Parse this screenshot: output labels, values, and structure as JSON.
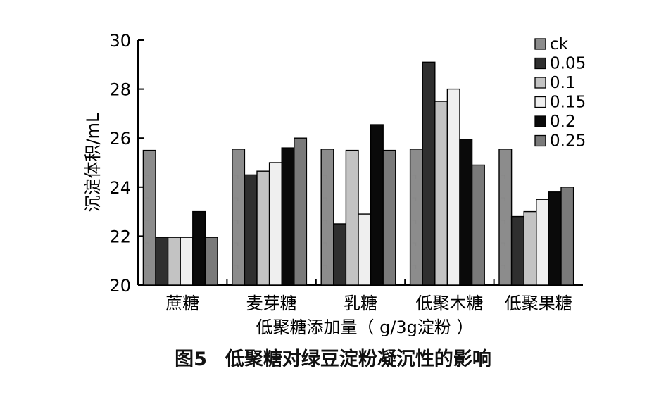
{
  "chart_data": {
    "type": "bar",
    "ylabel": "沉淀体积/mL",
    "xlabel": "低聚糖添加量（ g/3g淀粉 ）",
    "ylim": [
      20,
      30
    ],
    "yticks": [
      "20",
      "22",
      "24",
      "26",
      "28",
      "30"
    ],
    "categories": [
      "蔗糖",
      "麦芽糖",
      "乳糖",
      "低聚木糖",
      "低聚果糖"
    ],
    "legend_position": "top-right",
    "grid": false,
    "series": [
      {
        "name": "ck",
        "color": "#8c8c8c",
        "values": [
          25.5,
          25.55,
          25.55,
          25.55,
          25.55
        ]
      },
      {
        "name": "0.05",
        "color": "#2f2f2f",
        "values": [
          21.95,
          24.5,
          22.5,
          29.1,
          22.8
        ]
      },
      {
        "name": "0.1",
        "color": "#c3c3c3",
        "values": [
          21.95,
          24.65,
          25.5,
          27.5,
          23.0
        ]
      },
      {
        "name": "0.15",
        "color": "#efefef",
        "values": [
          21.95,
          25.0,
          22.9,
          28.0,
          23.5
        ]
      },
      {
        "name": "0.2",
        "color": "#0a0a0a",
        "values": [
          23.0,
          25.6,
          26.55,
          25.95,
          23.8
        ]
      },
      {
        "name": "0.25",
        "color": "#7a7a7a",
        "values": [
          21.95,
          26.0,
          25.5,
          24.9,
          24.0
        ]
      }
    ]
  },
  "caption": {
    "number": "图5",
    "text": "低聚糖对绿豆淀粉凝沉性的影响"
  }
}
